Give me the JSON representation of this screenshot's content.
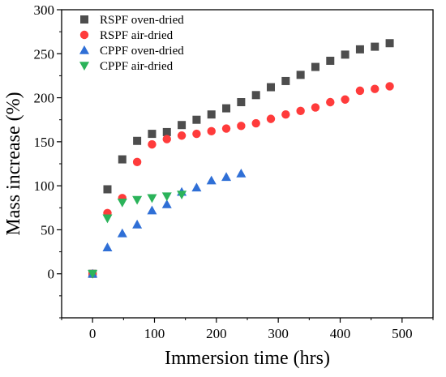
{
  "chart_data": {
    "type": "scatter",
    "title": "",
    "xlabel": "Immersion time (hrs)",
    "ylabel": "Mass increase (%)",
    "xlim": [
      -50,
      550
    ],
    "ylim": [
      -50,
      300
    ],
    "xticks": [
      0,
      100,
      200,
      300,
      400,
      500
    ],
    "yticks": [
      0,
      50,
      100,
      150,
      200,
      250,
      300
    ],
    "grid": false,
    "legend_position": "top-left",
    "series": [
      {
        "name": "RSPF oven-dried",
        "marker": "square",
        "color": "#4d4d4d",
        "points": [
          [
            0,
            0
          ],
          [
            24,
            96
          ],
          [
            48,
            130
          ],
          [
            72,
            151
          ],
          [
            96,
            159
          ],
          [
            120,
            161
          ],
          [
            144,
            169
          ],
          [
            168,
            175
          ],
          [
            192,
            181
          ],
          [
            216,
            188
          ],
          [
            240,
            195
          ],
          [
            264,
            203
          ],
          [
            288,
            212
          ],
          [
            312,
            219
          ],
          [
            336,
            226
          ],
          [
            360,
            235
          ],
          [
            384,
            242
          ],
          [
            408,
            249
          ],
          [
            432,
            255
          ],
          [
            456,
            258
          ],
          [
            480,
            262
          ]
        ]
      },
      {
        "name": "RSPF air-dried",
        "marker": "circle",
        "color": "#ff3b3b",
        "points": [
          [
            0,
            0
          ],
          [
            24,
            69
          ],
          [
            48,
            86
          ],
          [
            72,
            127
          ],
          [
            96,
            147
          ],
          [
            120,
            153
          ],
          [
            144,
            157
          ],
          [
            168,
            159
          ],
          [
            192,
            162
          ],
          [
            216,
            165
          ],
          [
            240,
            168
          ],
          [
            264,
            171
          ],
          [
            288,
            176
          ],
          [
            312,
            181
          ],
          [
            336,
            185
          ],
          [
            360,
            189
          ],
          [
            384,
            195
          ],
          [
            408,
            198
          ],
          [
            432,
            208
          ],
          [
            456,
            210
          ],
          [
            480,
            213
          ]
        ]
      },
      {
        "name": "CPPF oven-dried",
        "marker": "triangle-up",
        "color": "#2f6fd6",
        "points": [
          [
            0,
            0
          ],
          [
            24,
            30
          ],
          [
            48,
            46
          ],
          [
            72,
            56
          ],
          [
            96,
            72
          ],
          [
            120,
            79
          ],
          [
            144,
            93
          ],
          [
            168,
            98
          ],
          [
            192,
            106
          ],
          [
            216,
            110
          ],
          [
            240,
            114
          ]
        ]
      },
      {
        "name": "CPPF air-dried",
        "marker": "triangle-down",
        "color": "#2bb35a",
        "points": [
          [
            0,
            0
          ],
          [
            24,
            63
          ],
          [
            48,
            81
          ],
          [
            72,
            84
          ],
          [
            96,
            86
          ],
          [
            120,
            88
          ],
          [
            144,
            90
          ]
        ]
      }
    ]
  }
}
